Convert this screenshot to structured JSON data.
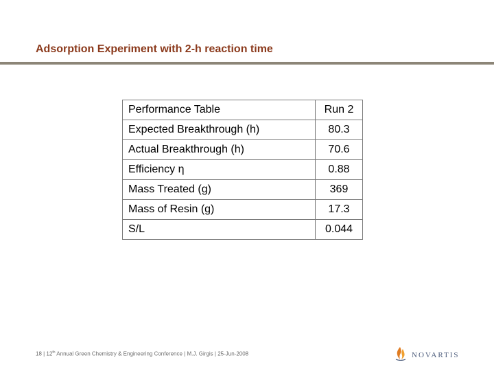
{
  "slide": {
    "title": "Adsorption Experiment with 2-h reaction time"
  },
  "table": {
    "header": {
      "label": "Performance Table",
      "value": "Run 2"
    },
    "rows": [
      {
        "label": "Expected Breakthrough (h)",
        "value": "80.3"
      },
      {
        "label": "Actual Breakthrough (h)",
        "value": "70.6"
      },
      {
        "label": "Efficiency η",
        "value": "0.88"
      },
      {
        "label": "Mass Treated (g)",
        "value": "369"
      },
      {
        "label": "Mass of Resin (g)",
        "value": "17.3"
      },
      {
        "label": "S/L",
        "value": "0.044"
      }
    ]
  },
  "footer": {
    "prefix": "18 | 12",
    "superscript": "th",
    "suffix": " Annual Green Chemistry & Engineering Conference | M.J. Girgis | 25-Jun-2008"
  },
  "logo": {
    "text": "NOVARTIS",
    "icon": "novartis-flame-icon",
    "accent_color": "#e07b20",
    "brand_color": "#4a5a7a"
  },
  "colors": {
    "title": "#8b3a1c",
    "rule": "#8c8577"
  }
}
